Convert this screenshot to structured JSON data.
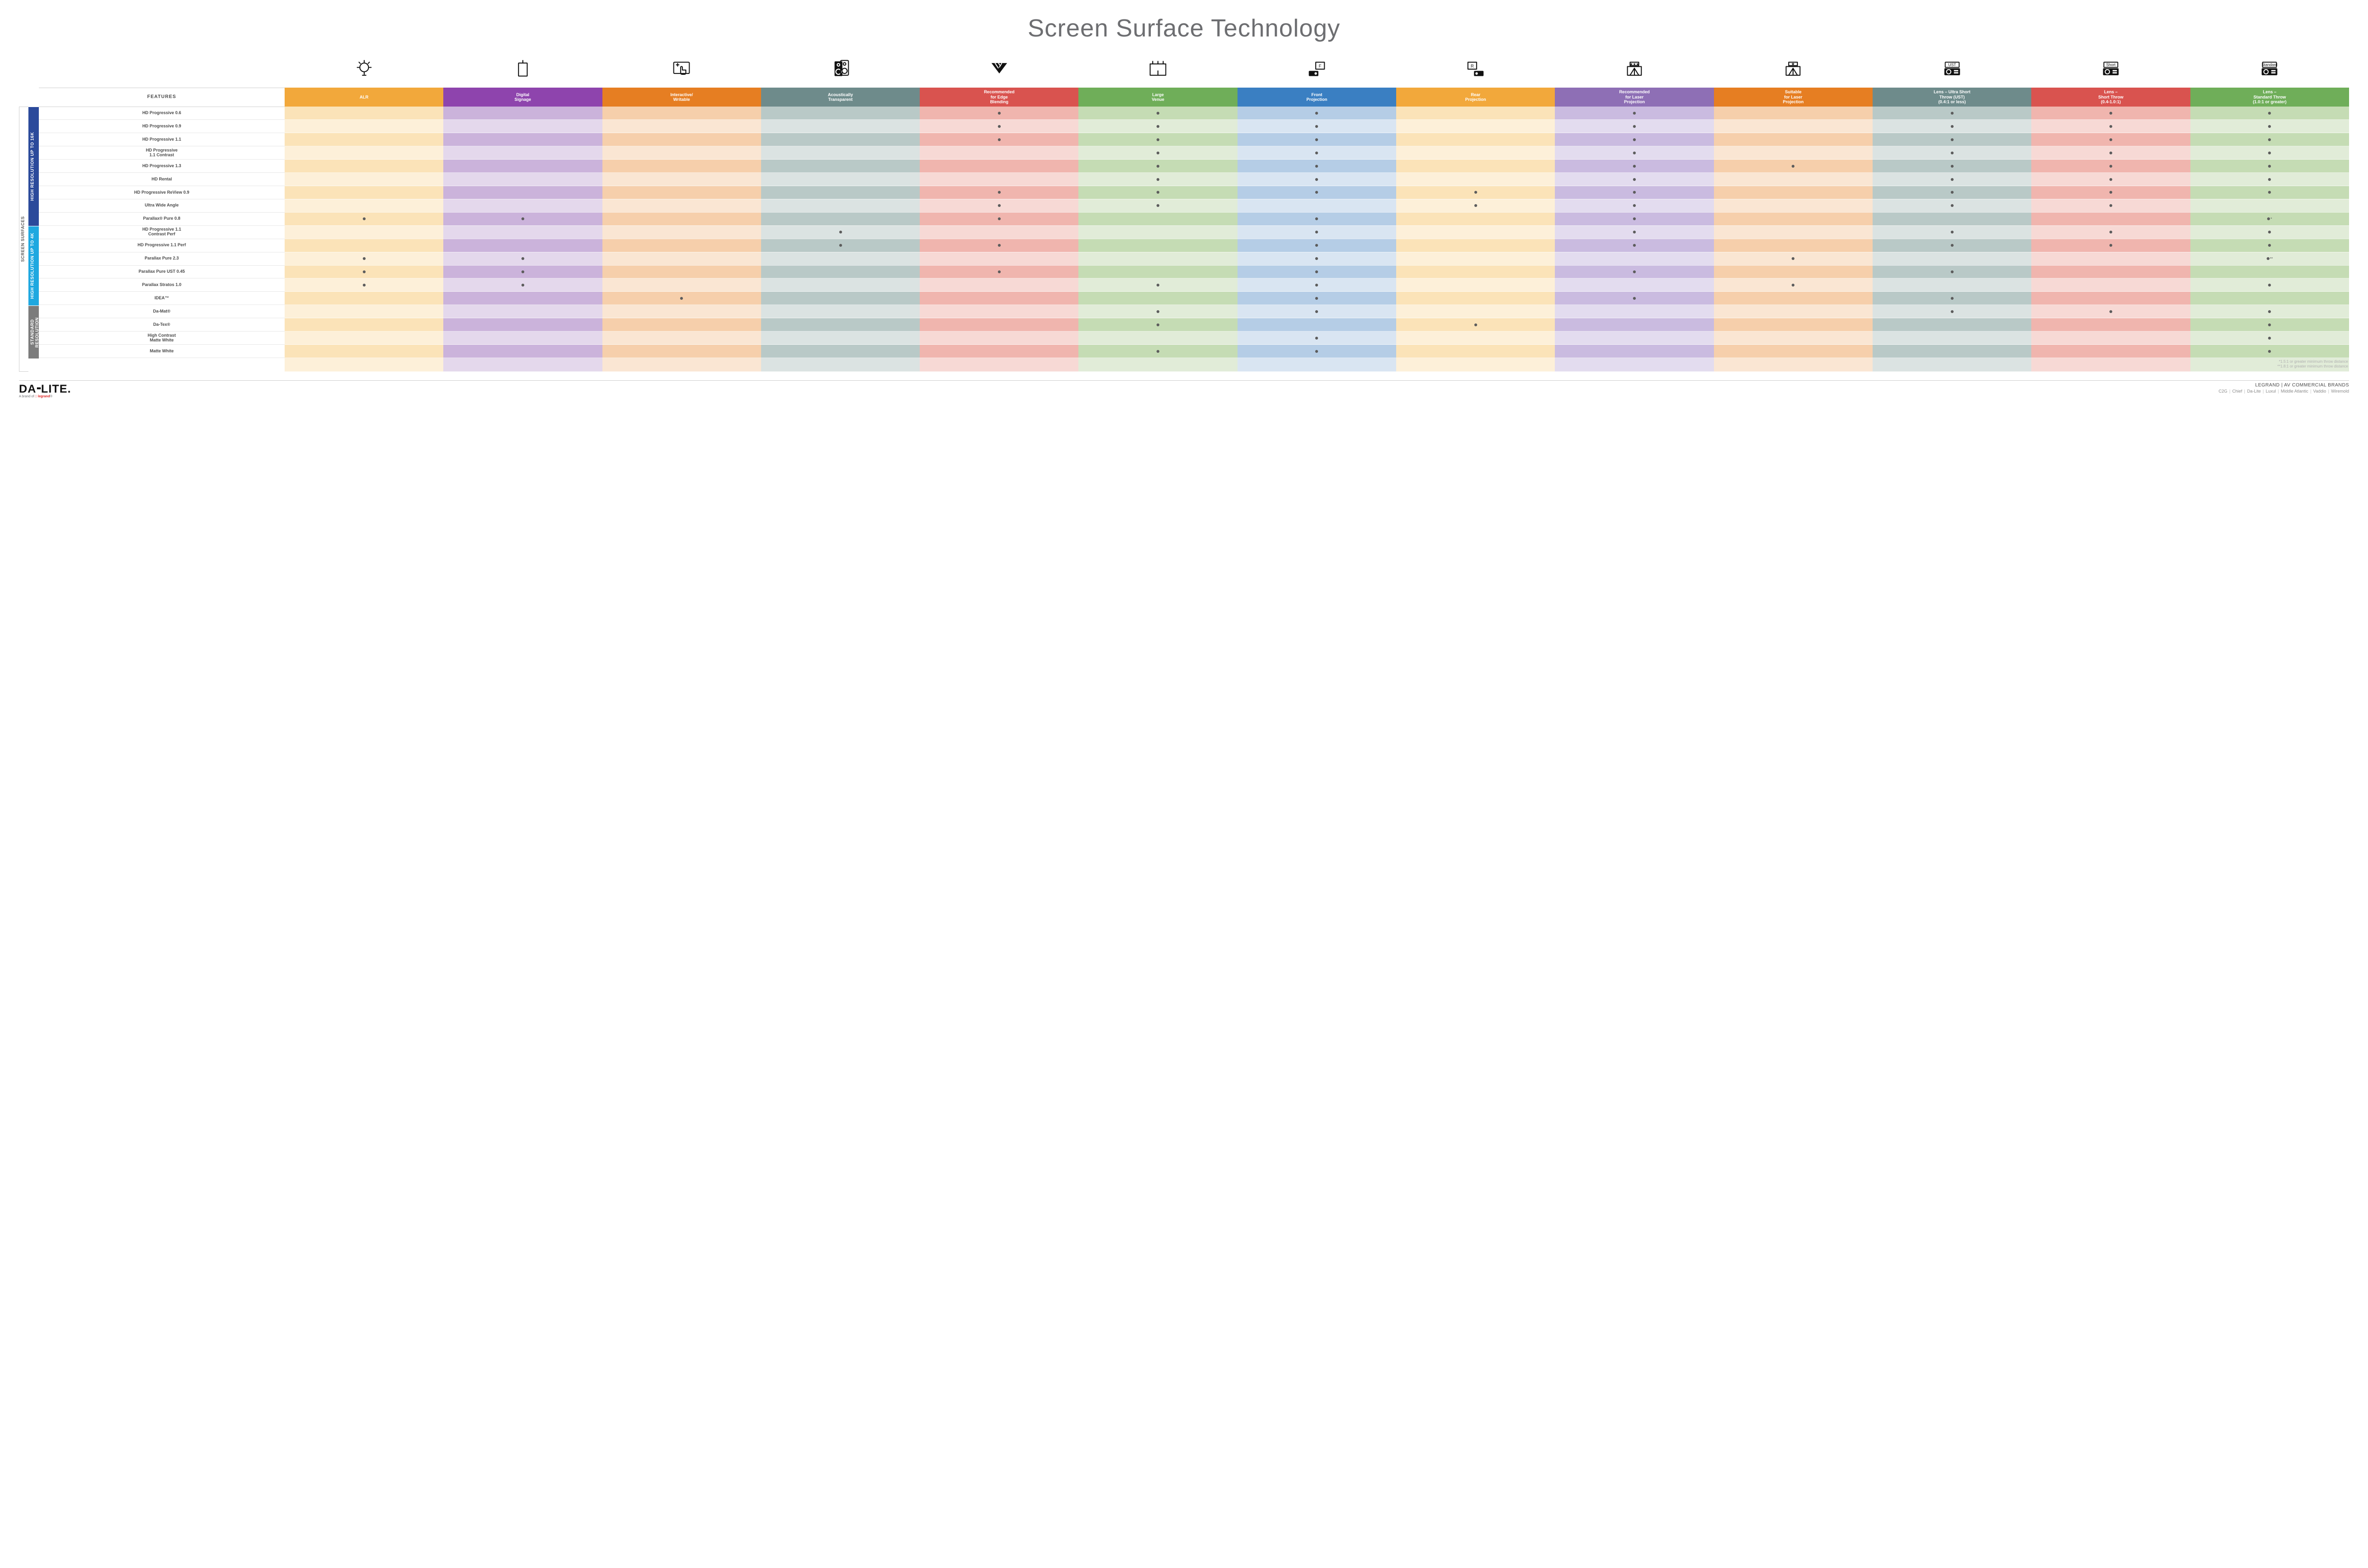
{
  "title": "Screen Surface Technology",
  "featuresLabel": "FEATURES",
  "sideOuterLabel": "SCREEN SURFACES",
  "columns": [
    {
      "key": "alr",
      "label": "ALR",
      "color": "#f2a83b",
      "light": "#fbe3b8",
      "lighter": "#fdf0d9",
      "icon": "bulb"
    },
    {
      "key": "digsign",
      "label": "Digital\nSignage",
      "color": "#8e44ad",
      "light": "#cbb3db",
      "lighter": "#e4d8ec",
      "icon": "signage"
    },
    {
      "key": "interactive",
      "label": "Interactive/\nWritable",
      "color": "#e67e22",
      "light": "#f6cfab",
      "lighter": "#fae6d3",
      "icon": "touch"
    },
    {
      "key": "acoustic",
      "label": "Acoustically\nTransparent",
      "color": "#6e8b8b",
      "light": "#b9c9c7",
      "lighter": "#dbe3e2",
      "icon": "speaker"
    },
    {
      "key": "edge",
      "label": "Recommended\nfor Edge\nBlending",
      "color": "#d9534f",
      "light": "#f0b5ae",
      "lighter": "#f7d9d5",
      "icon": "blend"
    },
    {
      "key": "large",
      "label": "Large\nVenue",
      "color": "#6fae59",
      "light": "#c5dcb4",
      "lighter": "#e1ecd8",
      "icon": "venue"
    },
    {
      "key": "front",
      "label": "Front\nProjection",
      "color": "#3a7fc2",
      "light": "#b5cde6",
      "lighter": "#d9e5f2",
      "icon": "front"
    },
    {
      "key": "rear",
      "label": "Rear\nProjection",
      "color": "#f2a83b",
      "light": "#fbe3b8",
      "lighter": "#fdf0d9",
      "icon": "rear"
    },
    {
      "key": "reclaser",
      "label": "Recommended\nfor Laser\nProjection",
      "color": "#8e6fb5",
      "light": "#cabbe0",
      "lighter": "#e3dcef",
      "icon": "laser3"
    },
    {
      "key": "suitlaser",
      "label": "Suitable\nfor Laser\nProjection",
      "color": "#e67e22",
      "light": "#f6cfab",
      "lighter": "#fae6d3",
      "icon": "laser1"
    },
    {
      "key": "ust",
      "label": "Lens – Ultra Short\nThrow (UST)\n(0.4:1 or less)",
      "color": "#6e8b8b",
      "light": "#b9c9c7",
      "lighter": "#dbe3e2",
      "icon": "proj",
      "projLabel": "UST"
    },
    {
      "key": "short",
      "label": "Lens –\nShort Throw\n(0.4-1.0:1)",
      "color": "#d9534f",
      "light": "#f0b5ae",
      "lighter": "#f7d9d5",
      "icon": "proj",
      "projLabel": "Short"
    },
    {
      "key": "std",
      "label": "Lens –\nStandard Throw\n(1.0:1 or greater)",
      "color": "#6fae59",
      "light": "#c5dcb4",
      "lighter": "#e1ecd8",
      "icon": "proj",
      "projLabel": "Standard"
    }
  ],
  "groups": [
    {
      "key": "g16k",
      "label": "HIGH RESOLUTION UP TO 16K",
      "color": "#2b4a9b",
      "rows": [
        {
          "label": "HD Progressive 0.6",
          "dots": {
            "edge": "•",
            "large": "•",
            "front": "•",
            "reclaser": "•",
            "ust": "•",
            "short": "•",
            "std": "•"
          }
        },
        {
          "label": "HD Progressive 0.9",
          "dots": {
            "edge": "•",
            "large": "•",
            "front": "•",
            "reclaser": "•",
            "ust": "•",
            "short": "•",
            "std": "•"
          }
        },
        {
          "label": "HD Progressive 1.1",
          "dots": {
            "edge": "•",
            "large": "•",
            "front": "•",
            "reclaser": "•",
            "ust": "•",
            "short": "•",
            "std": "•"
          }
        },
        {
          "label": "HD Progressive\n1.1 Contrast",
          "dots": {
            "large": "•",
            "front": "•",
            "reclaser": "•",
            "ust": "•",
            "short": "•",
            "std": "•"
          }
        },
        {
          "label": "HD Progressive 1.3",
          "dots": {
            "large": "•",
            "front": "•",
            "reclaser": "•",
            "suitlaser": "•",
            "ust": "•",
            "short": "•",
            "std": "•"
          }
        },
        {
          "label": "HD Rental",
          "dots": {
            "large": "•",
            "front": "•",
            "reclaser": "•",
            "ust": "•",
            "short": "•",
            "std": "•"
          }
        },
        {
          "label": "HD Progressive ReView 0.9",
          "dots": {
            "edge": "•",
            "large": "•",
            "front": "•",
            "rear": "•",
            "reclaser": "•",
            "ust": "•",
            "short": "•",
            "std": "•"
          }
        },
        {
          "label": "Ultra Wide Angle",
          "dots": {
            "edge": "•",
            "large": "•",
            "rear": "•",
            "reclaser": "•",
            "ust": "•",
            "short": "•"
          }
        },
        {
          "label": "Parallax® Pure 0.8",
          "dots": {
            "alr": "•",
            "digsign": "•",
            "edge": "•",
            "front": "•",
            "reclaser": "•",
            "std": "•*"
          }
        }
      ]
    },
    {
      "key": "g4k",
      "label": "HIGH RESOLUTION UP TO 4K",
      "color": "#1fa8e0",
      "rows": [
        {
          "label": "HD Progressive 1.1\nContrast Perf",
          "dots": {
            "acoustic": "•",
            "front": "•",
            "reclaser": "•",
            "ust": "•",
            "short": "•",
            "std": "•"
          }
        },
        {
          "label": "HD Progressive 1.1 Perf",
          "dots": {
            "acoustic": "•",
            "edge": "•",
            "front": "•",
            "reclaser": "•",
            "ust": "•",
            "short": "•",
            "std": "•"
          }
        },
        {
          "label": "Parallax Pure 2.3",
          "dots": {
            "alr": "•",
            "digsign": "•",
            "front": "•",
            "suitlaser": "•",
            "std": "•**"
          }
        },
        {
          "label": "Parallax Pure UST 0.45",
          "dots": {
            "alr": "•",
            "digsign": "•",
            "edge": "•",
            "front": "•",
            "reclaser": "•",
            "ust": "•"
          }
        },
        {
          "label": "Parallax Stratos 1.0",
          "dots": {
            "alr": "•",
            "digsign": "•",
            "large": "•",
            "front": "•",
            "suitlaser": "•",
            "std": "•"
          }
        },
        {
          "label": "IDEA™",
          "dots": {
            "interactive": "•",
            "front": "•",
            "reclaser": "•",
            "ust": "•"
          }
        }
      ]
    },
    {
      "key": "gstd",
      "label": "STANDARD\nRESOLUTION",
      "color": "#7c7c7c",
      "rows": [
        {
          "label": "Da-Mat®",
          "dots": {
            "large": "•",
            "front": "•",
            "ust": "•",
            "short": "•",
            "std": "•"
          }
        },
        {
          "label": "Da-Tex®",
          "dots": {
            "large": "•",
            "rear": "•",
            "std": "•"
          }
        },
        {
          "label": "High Contrast\nMatte White",
          "dots": {
            "front": "•",
            "std": "•"
          }
        },
        {
          "label": "Matte White",
          "dots": {
            "large": "•",
            "front": "•",
            "std": "•"
          }
        }
      ]
    }
  ],
  "footnotes": [
    "*1.5:1 or greater minimum throw distance",
    "**1.8:1 or greater minimum throw distance"
  ],
  "footer": {
    "logo": "DA‑LITE.",
    "logoSub": "A brand of",
    "logoBrand": "legrand",
    "brandsTitle": "LEGRAND | AV COMMERCIAL BRANDS",
    "brands": [
      "C2G",
      "Chief",
      "Da-Lite",
      "Luxul",
      "Middle Atlantic",
      "Vaddio",
      "Wiremold"
    ]
  }
}
